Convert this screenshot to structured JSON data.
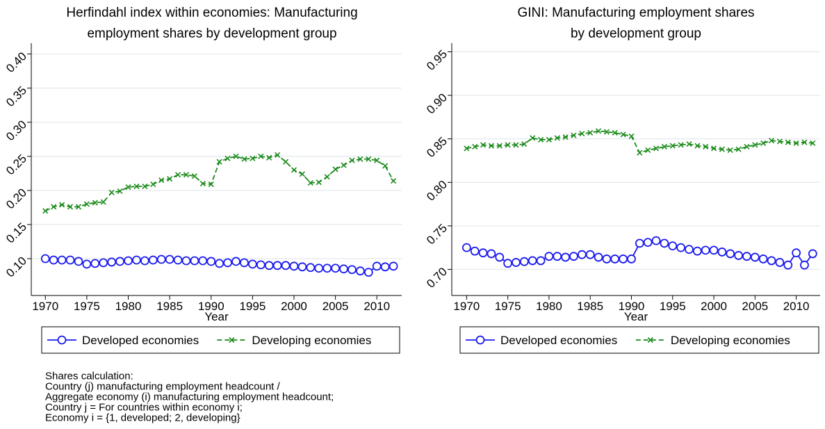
{
  "chart_data": [
    {
      "type": "line",
      "title": [
        "Herfindahl index within economies: Manufacturing",
        "employment shares by development group"
      ],
      "title_color": "#1e3a66",
      "x_label": "Year",
      "x": [
        1970,
        1971,
        1972,
        1973,
        1974,
        1975,
        1976,
        1977,
        1978,
        1979,
        1980,
        1981,
        1982,
        1983,
        1984,
        1985,
        1986,
        1987,
        1988,
        1989,
        1990,
        1991,
        1992,
        1993,
        1994,
        1995,
        1996,
        1997,
        1998,
        1999,
        2000,
        2001,
        2002,
        2003,
        2004,
        2005,
        2006,
        2007,
        2008,
        2009,
        2010,
        2011,
        2012
      ],
      "xlim": [
        1968.3,
        2013
      ],
      "xticks": [
        1970,
        1975,
        1980,
        1985,
        1990,
        1995,
        2000,
        2005,
        2010
      ],
      "ylim": [
        0.046,
        0.416
      ],
      "yticks": [
        {
          "value": 0.1,
          "label": "0.10"
        },
        0.15,
        {
          "value": 0.2,
          "label": "0.20"
        },
        0.25,
        {
          "value": 0.3,
          "label": "0.30"
        },
        0.35,
        {
          "value": 0.4,
          "label": "0.40"
        }
      ],
      "grid": true,
      "series": [
        {
          "name": "Developed economies",
          "color": "#1a1aee",
          "marker": "circle",
          "dash": false,
          "values": [
            0.1,
            0.098,
            0.098,
            0.098,
            0.096,
            0.092,
            0.093,
            0.094,
            0.095,
            0.096,
            0.097,
            0.098,
            0.097,
            0.098,
            0.099,
            0.099,
            0.098,
            0.097,
            0.097,
            0.097,
            0.096,
            0.093,
            0.094,
            0.096,
            0.094,
            0.092,
            0.091,
            0.09,
            0.09,
            0.09,
            0.089,
            0.088,
            0.087,
            0.086,
            0.086,
            0.086,
            0.085,
            0.084,
            0.082,
            0.08,
            0.089,
            0.088,
            0.089
          ]
        },
        {
          "name": "Developing economies",
          "color": "#1a8a1a",
          "marker": "x",
          "dash": true,
          "values": [
            0.17,
            0.176,
            0.179,
            0.176,
            0.176,
            0.18,
            0.182,
            0.183,
            0.197,
            0.199,
            0.205,
            0.206,
            0.206,
            0.209,
            0.215,
            0.217,
            0.223,
            0.223,
            0.221,
            0.21,
            0.209,
            0.242,
            0.247,
            0.25,
            0.246,
            0.247,
            0.25,
            0.248,
            0.252,
            0.242,
            0.23,
            0.224,
            0.211,
            0.212,
            0.22,
            0.231,
            0.237,
            0.244,
            0.246,
            0.246,
            0.244,
            0.236,
            0.214
          ]
        }
      ],
      "note": [
        "Shares calculation:",
        "Country (j) manufacturing employment headcount /",
        "Aggregate economy (i) manufacturing employment headcount;",
        "Country j = For countries within economy i;",
        "Economy i = {1, developed; 2, developing}"
      ]
    },
    {
      "type": "line",
      "title": [
        "GINI: Manufacturing employment shares",
        "by development group"
      ],
      "title_color": "#1e3a66",
      "x_label": "Year",
      "x": [
        1970,
        1971,
        1972,
        1973,
        1974,
        1975,
        1976,
        1977,
        1978,
        1979,
        1980,
        1981,
        1982,
        1983,
        1984,
        1985,
        1986,
        1987,
        1988,
        1989,
        1990,
        1991,
        1992,
        1993,
        1994,
        1995,
        1996,
        1997,
        1998,
        1999,
        2000,
        2001,
        2002,
        2003,
        2004,
        2005,
        2006,
        2007,
        2008,
        2009,
        2010,
        2011,
        2012
      ],
      "xlim": [
        1968.2,
        2012.9
      ],
      "xticks": [
        1970,
        1975,
        1980,
        1985,
        1990,
        1995,
        2000,
        2005,
        2010
      ],
      "ylim": [
        0.67,
        0.96
      ],
      "yticks": [
        {
          "value": 0.7,
          "label": "0.70"
        },
        0.75,
        {
          "value": 0.8,
          "label": "0.80"
        },
        0.85,
        {
          "value": 0.9,
          "label": "0.90"
        },
        0.95
      ],
      "grid": true,
      "series": [
        {
          "name": "Developed economies",
          "color": "#1a1aee",
          "marker": "circle",
          "dash": false,
          "values": [
            0.725,
            0.721,
            0.719,
            0.718,
            0.714,
            0.707,
            0.708,
            0.709,
            0.71,
            0.71,
            0.715,
            0.715,
            0.714,
            0.715,
            0.717,
            0.717,
            0.714,
            0.712,
            0.712,
            0.712,
            0.712,
            0.73,
            0.731,
            0.733,
            0.73,
            0.727,
            0.725,
            0.723,
            0.721,
            0.722,
            0.722,
            0.72,
            0.718,
            0.716,
            0.715,
            0.714,
            0.712,
            0.71,
            0.708,
            0.705,
            0.719,
            0.705,
            0.718
          ]
        },
        {
          "name": "Developing economies",
          "color": "#1a8a1a",
          "marker": "x",
          "dash": true,
          "values": [
            0.839,
            0.841,
            0.843,
            0.842,
            0.842,
            0.843,
            0.843,
            0.844,
            0.851,
            0.849,
            0.849,
            0.851,
            0.852,
            0.854,
            0.856,
            0.857,
            0.859,
            0.858,
            0.857,
            0.855,
            0.853,
            0.834,
            0.837,
            0.839,
            0.841,
            0.842,
            0.843,
            0.844,
            0.842,
            0.841,
            0.839,
            0.838,
            0.837,
            0.838,
            0.841,
            0.843,
            0.845,
            0.848,
            0.847,
            0.846,
            0.845,
            0.846,
            0.845
          ]
        }
      ]
    }
  ]
}
